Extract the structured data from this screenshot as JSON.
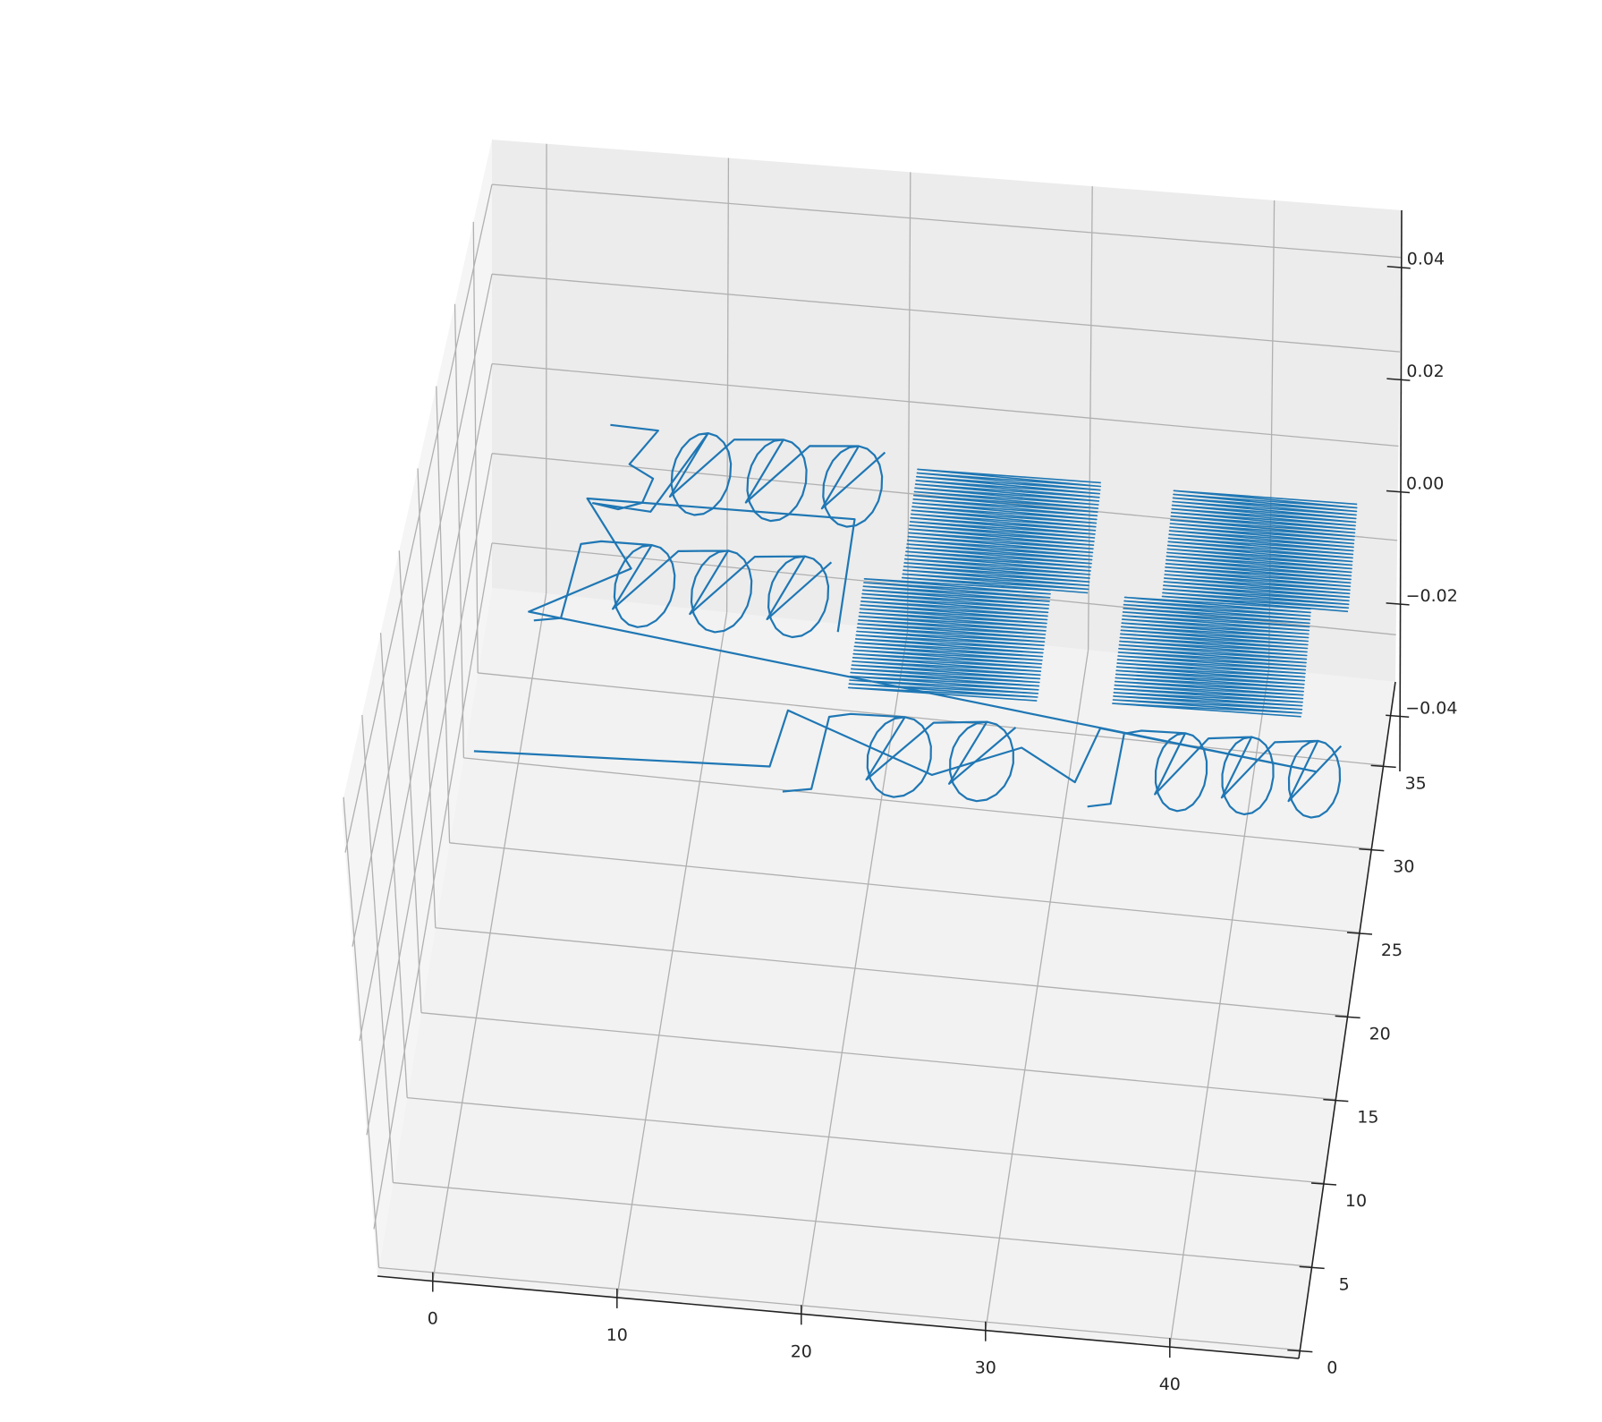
{
  "chart_data": {
    "type": "line",
    "projection": "3d",
    "series_color": "#1f77b4",
    "pane_color": "#f2f2f2",
    "grid": true,
    "x_ticks": [
      "0",
      "10",
      "20",
      "30",
      "40"
    ],
    "y_ticks": [
      "0",
      "5",
      "10",
      "15",
      "20",
      "25",
      "30",
      "35"
    ],
    "z_ticks": [
      "−0.04",
      "−0.02",
      "0.00",
      "0.02",
      "0.04"
    ],
    "xlim": [
      -3,
      47
    ],
    "ylim": [
      -0.5,
      40
    ],
    "zlim": [
      -0.05,
      0.05
    ],
    "z_constant": 0,
    "labels": [
      {
        "text": "3000",
        "x_start": 3.5,
        "x_end": 20,
        "y_low": 32,
        "y_high": 37
      },
      {
        "text": "1000",
        "x_start": 1.5,
        "x_end": 18,
        "y_low": 25,
        "y_high": 30
      },
      {
        "text": "100",
        "x_start": 16,
        "x_end": 29,
        "y_low": 15.5,
        "y_high": 20.5
      },
      {
        "text": "1000",
        "x_start": 32,
        "x_end": 46,
        "y_low": 15.5,
        "y_high": 20.5
      }
    ],
    "filled_squares": [
      {
        "x": [
          21,
          31
        ],
        "y": [
          29,
          36
        ]
      },
      {
        "x": [
          35,
          45
        ],
        "y": [
          29,
          36
        ]
      },
      {
        "x": [
          19,
          29
        ],
        "y": [
          22,
          29
        ]
      },
      {
        "x": [
          33,
          43
        ],
        "y": [
          22,
          29
        ]
      }
    ],
    "connector_path": [
      [
        0,
        17
      ],
      [
        15.5,
        17
      ],
      [
        16,
        20.5
      ],
      [
        24,
        17
      ],
      [
        28.5,
        19
      ],
      [
        31.5,
        17
      ],
      [
        32.5,
        20.5
      ],
      [
        44,
        18.5
      ],
      [
        1.5,
        25.5
      ],
      [
        6.5,
        28.5
      ],
      [
        3.5,
        32.5
      ],
      [
        18,
        32.5
      ],
      [
        18,
        25.5
      ]
    ]
  }
}
